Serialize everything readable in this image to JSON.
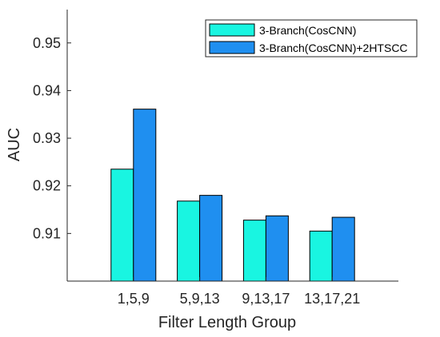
{
  "chart_data": {
    "type": "bar",
    "xlabel": "Filter Length Group",
    "ylabel": "AUC",
    "categories": [
      "1,5,9",
      "5,9,13",
      "9,13,17",
      "13,17,21"
    ],
    "ylim": [
      0.9,
      0.957
    ],
    "yticks": [
      "0.91",
      "0.92",
      "0.93",
      "0.94",
      "0.95"
    ],
    "legend_position": "top-right",
    "grid": false,
    "series": [
      {
        "name": "3-Branch(CosCNN)",
        "color": "#19f5e1",
        "values": [
          0.9235,
          0.9168,
          0.9128,
          0.9105
        ]
      },
      {
        "name": "3-Branch(CosCNN)+2HTSCC",
        "color": "#1f8ff0",
        "values": [
          0.9361,
          0.918,
          0.9137,
          0.9134
        ]
      }
    ]
  }
}
